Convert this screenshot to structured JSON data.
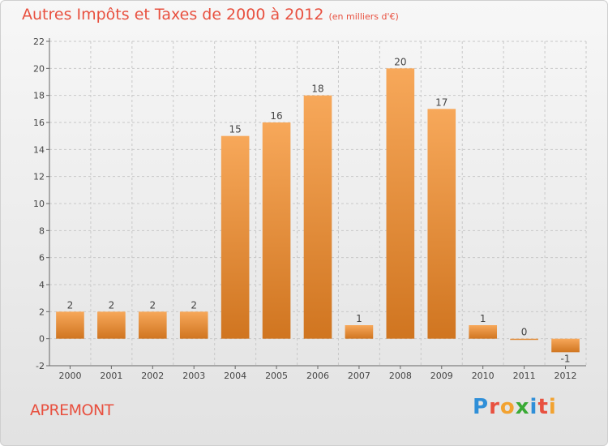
{
  "header": {
    "title": "Autres Impôts et Taxes de 2000 à 2012",
    "unit": "(en milliers d'€)"
  },
  "footer": {
    "town": "APREMONT",
    "logo_text": "Proxiti"
  },
  "colors": {
    "title": "#e8503f",
    "bar_light": "#f7a85a",
    "bar_dark": "#d07520",
    "logo": [
      "#2f8fd8",
      "#e8503f",
      "#f2a230",
      "#3aaa35",
      "#2f8fd8",
      "#e8503f",
      "#f2a230"
    ]
  },
  "chart_data": {
    "type": "bar",
    "title": "Autres Impôts et Taxes de 2000 à 2012",
    "subtitle": "(en milliers d'€)",
    "categories": [
      "2000",
      "2001",
      "2002",
      "2003",
      "2004",
      "2005",
      "2006",
      "2007",
      "2008",
      "2009",
      "2010",
      "2011",
      "2012"
    ],
    "values": [
      2,
      2,
      2,
      2,
      15,
      16,
      18,
      1,
      20,
      17,
      1,
      0,
      -1
    ],
    "ylim": [
      -2,
      22
    ],
    "yticks": [
      -2,
      0,
      2,
      4,
      6,
      8,
      10,
      12,
      14,
      16,
      18,
      20,
      22
    ],
    "grid": true,
    "xlabel": "",
    "ylabel": ""
  }
}
